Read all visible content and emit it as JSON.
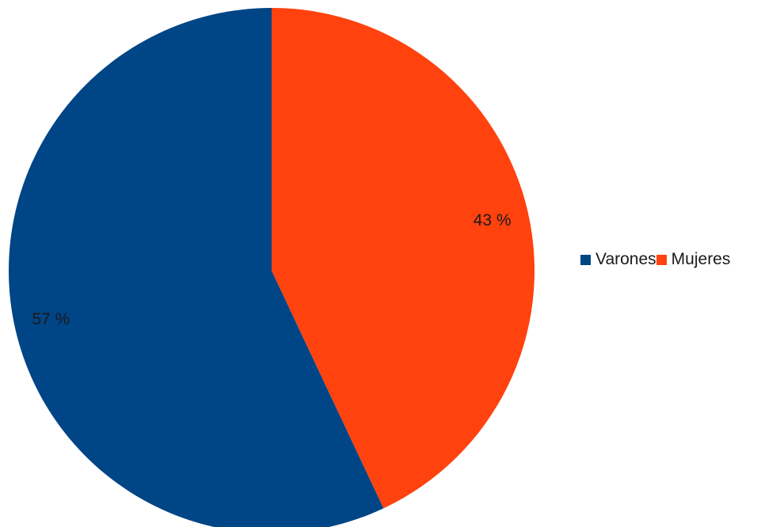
{
  "chart_data": {
    "type": "pie",
    "categories": [
      "Varones",
      "Mujeres"
    ],
    "values": [
      57,
      43
    ],
    "labels": [
      "57 %",
      "43 %"
    ],
    "colors": [
      "#004586",
      "#ff420e"
    ],
    "legend_position": "right",
    "start": "top",
    "direction": "counterclockwise",
    "title": "",
    "xlabel": "",
    "ylabel": ""
  },
  "legend": {
    "items": [
      {
        "label": "Varones",
        "color": "#004586"
      },
      {
        "label": "Mujeres",
        "color": "#ff420e"
      }
    ]
  }
}
